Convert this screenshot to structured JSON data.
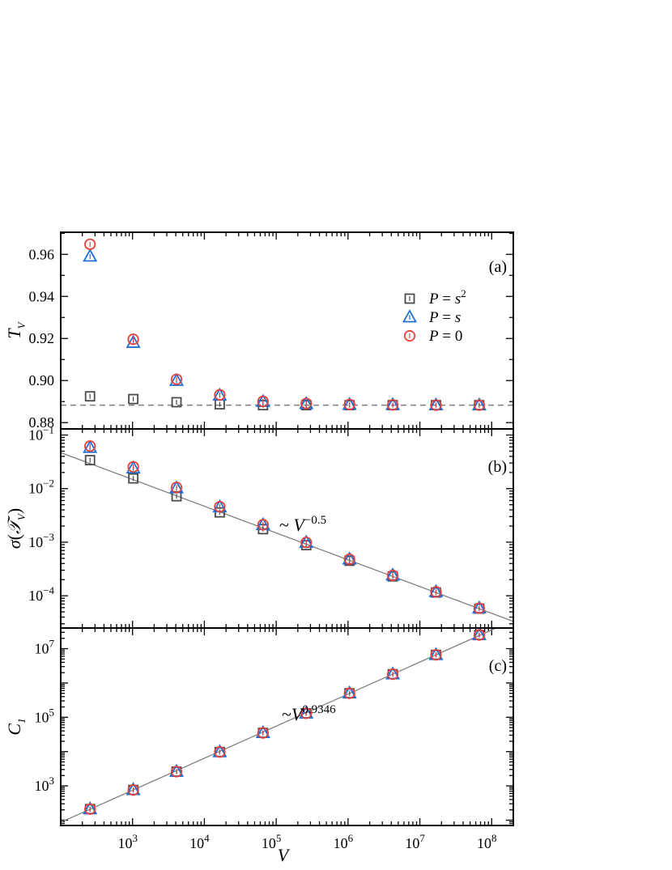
{
  "chart_data": [
    {
      "id": "a",
      "type": "scatter",
      "panel_label": "(a)",
      "ylabel": "T_V",
      "xlabel": "",
      "xscale": "log",
      "yscale": "linear",
      "xlim": [
        100,
        200000000
      ],
      "ylim": [
        0.877,
        0.9705
      ],
      "x": [
        256,
        1024,
        4096,
        16384,
        65536,
        262144,
        1048576,
        4194304,
        16777216,
        67108864
      ],
      "yticks": [
        0.88,
        0.9,
        0.92,
        0.94,
        0.96
      ],
      "ytick_labels": [
        "0.88",
        "0.90",
        "0.92",
        "0.94",
        "0.96"
      ],
      "reference_line": {
        "y": 0.8883,
        "style": "dashed",
        "color": "#808080"
      },
      "legend": {
        "placement": "right-center"
      },
      "series": [
        {
          "name": "P = s²",
          "marker": "square",
          "color": "#4a4a4a",
          "values": [
            0.8925,
            0.8912,
            0.8897,
            0.8887,
            0.8883,
            0.8883,
            0.8883,
            0.8883,
            0.8883,
            0.8883
          ]
        },
        {
          "name": "P = s",
          "marker": "triangle",
          "color": "#1f6fd6",
          "values": [
            0.959,
            0.918,
            0.8999,
            0.8929,
            0.8899,
            0.8889,
            0.8885,
            0.8884,
            0.8883,
            0.8883
          ]
        },
        {
          "name": "P = 0",
          "marker": "circle",
          "color": "#e8413c",
          "values": [
            0.9648,
            0.9196,
            0.9006,
            0.8932,
            0.8901,
            0.8891,
            0.8886,
            0.8884,
            0.8883,
            0.8883
          ]
        }
      ]
    },
    {
      "id": "b",
      "type": "scatter",
      "panel_label": "(b)",
      "ylabel": "σ(𝒯_V)",
      "xlabel": "",
      "xscale": "log",
      "yscale": "log",
      "xlim": [
        100,
        200000000
      ],
      "ylim": [
        2.5e-05,
        0.13
      ],
      "x": [
        256,
        1024,
        4096,
        16384,
        65536,
        262144,
        1048576,
        4194304,
        16777216,
        67108864
      ],
      "yticks": [
        0.0001,
        0.001,
        0.01,
        0.1
      ],
      "ytick_labels": [
        "10^-4",
        "10^-3",
        "10^-2",
        "10^-1"
      ],
      "fit": {
        "label": "~ V^-0.5",
        "prefactor": 0.47,
        "exponent": -0.5,
        "color": "#808080"
      },
      "series": [
        {
          "name": "P = s²",
          "marker": "square",
          "color": "#4a4a4a",
          "values": [
            0.034,
            0.0155,
            0.0072,
            0.0036,
            0.00175,
            0.00088,
            0.00045,
            0.00023,
            0.000115,
            5.75e-05
          ]
        },
        {
          "name": "P = s",
          "marker": "triangle",
          "color": "#1f6fd6",
          "values": [
            0.058,
            0.024,
            0.0102,
            0.0045,
            0.0021,
            0.00098,
            0.00048,
            0.00024,
            0.000118,
            5.85e-05
          ]
        },
        {
          "name": "P = 0",
          "marker": "circle",
          "color": "#e8413c",
          "values": [
            0.062,
            0.0255,
            0.0105,
            0.0046,
            0.00212,
            0.00099,
            0.00048,
            0.00024,
            0.000118,
            5.85e-05
          ]
        }
      ]
    },
    {
      "id": "c",
      "type": "scatter",
      "panel_label": "(c)",
      "ylabel": "C_1",
      "xlabel": "V",
      "xscale": "log",
      "yscale": "log",
      "xlim": [
        100,
        200000000
      ],
      "ylim": [
        70,
        40000000
      ],
      "x": [
        256,
        1024,
        4096,
        16384,
        65536,
        262144,
        1048576,
        4194304,
        16777216,
        67108864
      ],
      "xticks": [
        1000,
        10000,
        100000,
        1000000,
        10000000,
        100000000
      ],
      "xtick_labels": [
        "10^3",
        "10^4",
        "10^5",
        "10^6",
        "10^7",
        "10^8"
      ],
      "yticks": [
        1000,
        100000,
        10000000
      ],
      "ytick_labels": [
        "10^3",
        "10^5",
        "10^7"
      ],
      "fit": {
        "label": "~V^0.9346",
        "prefactor": 1.17,
        "exponent": 0.9346,
        "color": "#808080"
      },
      "series": [
        {
          "name": "P = s²",
          "marker": "square",
          "color": "#4a4a4a",
          "values": [
            210,
            760,
            2600,
            9700,
            35000,
            130000,
            500000,
            1800000,
            6600000,
            25000000
          ]
        },
        {
          "name": "P = s",
          "marker": "triangle",
          "color": "#1f6fd6",
          "values": [
            210,
            760,
            2600,
            9700,
            35000,
            130000,
            500000,
            1800000,
            6600000,
            25000000
          ]
        },
        {
          "name": "P = 0",
          "marker": "circle",
          "color": "#e8413c",
          "values": [
            210,
            760,
            2600,
            9700,
            35000,
            130000,
            500000,
            1800000,
            6600000,
            25000000
          ]
        }
      ]
    }
  ]
}
